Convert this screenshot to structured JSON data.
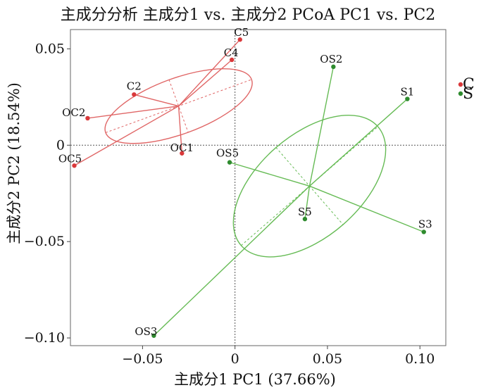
{
  "chart_data": {
    "type": "scatter",
    "title": "主成分分析 主成分1 vs. 主成分2 PCoA PC1 vs. PC2",
    "xlabel": "主成分1 PC1 (37.66%)",
    "ylabel": "主成分2 PC2 (18.54%)",
    "xlim": [
      -0.089,
      0.114
    ],
    "ylim": [
      -0.104,
      0.06
    ],
    "x_ticks": [
      {
        "value": -0.05,
        "label": "−0.05"
      },
      {
        "value": 0,
        "label": "0"
      },
      {
        "value": 0.05,
        "label": "0.05"
      },
      {
        "value": 0.1,
        "label": "0.10"
      }
    ],
    "y_ticks": [
      {
        "value": 0.05,
        "label": "0.05"
      },
      {
        "value": 0,
        "label": "0"
      },
      {
        "value": -0.05,
        "label": "−0.05"
      },
      {
        "value": -0.1,
        "label": "−0.10"
      }
    ],
    "reference_lines": {
      "x": 0,
      "y": 0,
      "style": "dashed"
    },
    "grid": false,
    "legend": {
      "placement": "right"
    },
    "series": [
      {
        "name": "C",
        "color": "#d9383a",
        "line_color": "#e06666",
        "centroid": {
          "x": -0.0305,
          "y": 0.0203
        },
        "ellipse": {
          "rx": 0.042,
          "ry": 0.0145,
          "angle_deg": 20
        },
        "points": [
          {
            "label": "C5",
            "x": 0.0027,
            "y": 0.0548
          },
          {
            "label": "C4",
            "x": -0.0017,
            "y": 0.0443
          },
          {
            "label": "C2",
            "x": -0.0546,
            "y": 0.0263
          },
          {
            "label": "OC2",
            "x": -0.0797,
            "y": 0.014
          },
          {
            "label": "OC1",
            "x": -0.0287,
            "y": -0.0042
          },
          {
            "label": "OC5",
            "x": -0.0869,
            "y": -0.0106
          }
        ]
      },
      {
        "name": "S",
        "color": "#2e8b2e",
        "line_color": "#66bb55",
        "centroid": {
          "x": 0.0403,
          "y": -0.0212
        },
        "ellipse": {
          "rx": 0.049,
          "ry": 0.0265,
          "angle_deg": 41
        },
        "points": [
          {
            "label": "OS2",
            "x": 0.0532,
            "y": 0.0407
          },
          {
            "label": "S1",
            "x": 0.0932,
            "y": 0.024
          },
          {
            "label": "OS5",
            "x": -0.0029,
            "y": -0.0089
          },
          {
            "label": "S5",
            "x": 0.0378,
            "y": -0.0383
          },
          {
            "label": "S3",
            "x": 0.1021,
            "y": -0.045
          },
          {
            "label": "OS3",
            "x": -0.0439,
            "y": -0.0988
          }
        ]
      }
    ]
  }
}
